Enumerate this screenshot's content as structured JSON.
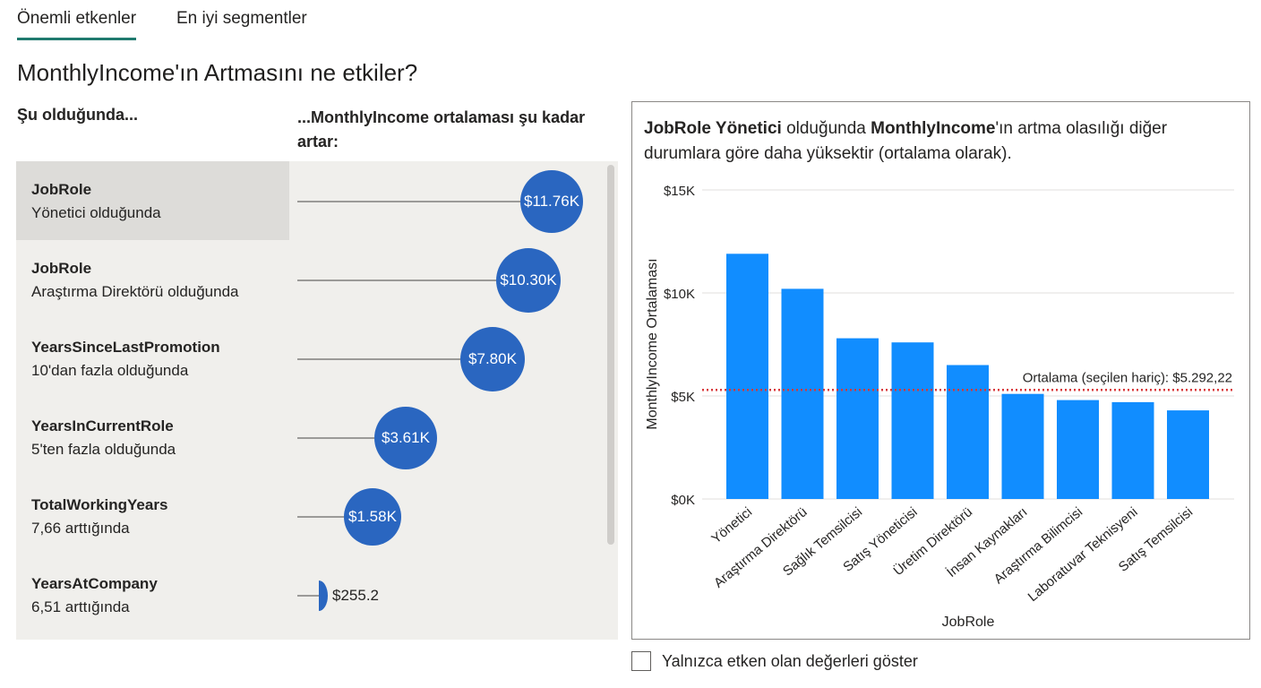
{
  "tabs": [
    {
      "label": "Önemli etkenler",
      "active": true
    },
    {
      "label": "En iyi segmentler",
      "active": false
    }
  ],
  "title": "MonthlyIncome'ın Artmasını ne etkiler?",
  "column_when": "Şu olduğunda...",
  "column_effect": "...MonthlyIncome ortalaması şu kadar artar:",
  "influencers": [
    {
      "name": "JobRole",
      "desc": "Yönetici olduğunda",
      "value": "$11.76K",
      "amount": 11760,
      "selected": true
    },
    {
      "name": "JobRole",
      "desc": "Araştırma Direktörü olduğunda",
      "value": "$10.30K",
      "amount": 10300
    },
    {
      "name": "YearsSinceLastPromotion",
      "desc": "10'dan fazla olduğunda",
      "value": "$7.80K",
      "amount": 7800
    },
    {
      "name": "YearsInCurrentRole",
      "desc": "5'ten fazla olduğunda",
      "value": "$3.61K",
      "amount": 3610
    },
    {
      "name": "TotalWorkingYears",
      "desc": "7,66 arttığında",
      "value": "$1.58K",
      "amount": 1580
    },
    {
      "name": "YearsAtCompany",
      "desc": "6,51 arttığında",
      "value": "$255.2",
      "amount": 255.2
    }
  ],
  "detail": {
    "t1": "JobRole ",
    "t2": "Yönetici",
    "t3": " olduğunda ",
    "t4": "MonthlyIncome",
    "t5": "'ın artma olasılığı diğer durumlara göre daha yüksektir (ortalama olarak)."
  },
  "chart_data": {
    "type": "bar",
    "categories": [
      "Yönetici",
      "Araştırma Direktörü",
      "Sağlık Temsilcisi",
      "Satış Yöneticisi",
      "Üretim Direktörü",
      "İnsan Kaynakları",
      "Araştırma Bilimcisi",
      "Laboratuvar Teknisyeni",
      "Satış Temsilcisi"
    ],
    "values": [
      11900,
      10200,
      7800,
      7600,
      6500,
      5100,
      4800,
      4700,
      4300
    ],
    "xlabel": "JobRole",
    "ylabel": "MonthlyIncome Ortalaması",
    "ylim": [
      0,
      15000
    ],
    "yticks": [
      "$0K",
      "$5K",
      "$10K",
      "$15K"
    ],
    "ytick_values": [
      0,
      5000,
      10000,
      15000
    ],
    "reference_line": {
      "label": "Ortalama (seçilen hariç): $5.292,22",
      "value": 5292.22,
      "color": "#d9383a"
    },
    "bar_color": "#118dff",
    "grid": true
  },
  "checkbox": {
    "label": "Yalnızca etken olan değerleri göster",
    "checked": false
  }
}
